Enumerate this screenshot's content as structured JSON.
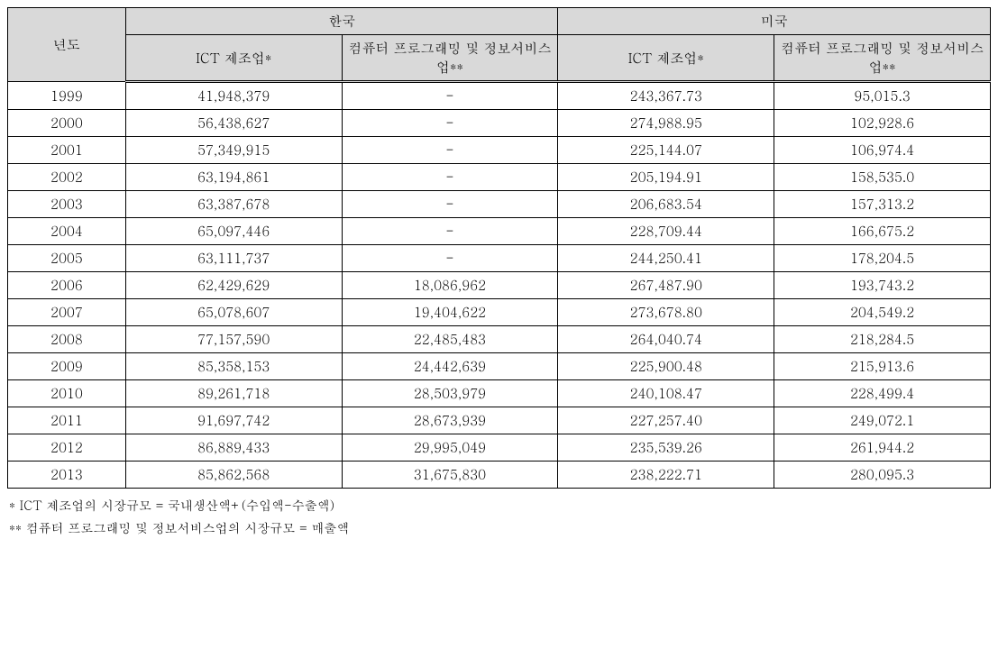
{
  "table": {
    "header": {
      "year": "년도",
      "korea": "한국",
      "usa": "미국",
      "ict_manufacturing": "ICT 제조업*",
      "computer_programming": "컴퓨터  프로그래밍 및 정보서비스업**"
    },
    "rows": [
      {
        "year": "1999",
        "k_ict": "41,948,379",
        "k_cp": "-",
        "u_ict": "243,367.73",
        "u_cp": "95,015.3"
      },
      {
        "year": "2000",
        "k_ict": "56,438,627",
        "k_cp": "-",
        "u_ict": "274,988.95",
        "u_cp": "102,928.6"
      },
      {
        "year": "2001",
        "k_ict": "57,349,915",
        "k_cp": "-",
        "u_ict": "225,144.07",
        "u_cp": "106,974.4"
      },
      {
        "year": "2002",
        "k_ict": "63,194,861",
        "k_cp": "-",
        "u_ict": "205,194.91",
        "u_cp": "158,535.0"
      },
      {
        "year": "2003",
        "k_ict": "63,387,678",
        "k_cp": "-",
        "u_ict": "206,683.54",
        "u_cp": "157,313.2"
      },
      {
        "year": "2004",
        "k_ict": "65,097,446",
        "k_cp": "-",
        "u_ict": "228,709.44",
        "u_cp": "166,675.2"
      },
      {
        "year": "2005",
        "k_ict": "63,111,737",
        "k_cp": "-",
        "u_ict": "244,250.41",
        "u_cp": "178,204.5"
      },
      {
        "year": "2006",
        "k_ict": "62,429,629",
        "k_cp": "18,086,962",
        "u_ict": "267,487.90",
        "u_cp": "193,743.2"
      },
      {
        "year": "2007",
        "k_ict": "65,078,607",
        "k_cp": "19,404,622",
        "u_ict": "273,678.80",
        "u_cp": "204,549.2"
      },
      {
        "year": "2008",
        "k_ict": "77,157,590",
        "k_cp": "22,485,483",
        "u_ict": "264,040.74",
        "u_cp": "218,284.5"
      },
      {
        "year": "2009",
        "k_ict": "85,358,153",
        "k_cp": "24,442,639",
        "u_ict": "225,900.48",
        "u_cp": "215,913.6"
      },
      {
        "year": "2010",
        "k_ict": "89,261,718",
        "k_cp": "28,503,979",
        "u_ict": "240,108.47",
        "u_cp": "228,499.4"
      },
      {
        "year": "2011",
        "k_ict": "91,697,742",
        "k_cp": "28,673,939",
        "u_ict": "227,257.40",
        "u_cp": "249,072.1"
      },
      {
        "year": "2012",
        "k_ict": "86,889,433",
        "k_cp": "29,995,049",
        "u_ict": "235,539.26",
        "u_cp": "261,944.2"
      },
      {
        "year": "2013",
        "k_ict": "85,862,568",
        "k_cp": "31,675,830",
        "u_ict": "238,222.71",
        "u_cp": "280,095.3"
      }
    ]
  },
  "footnotes": {
    "note1": "* ICT 제조업의  시장규모 = 국내생산액+(수입액-수출액)",
    "note2": "** 컴퓨터  프로그래밍 및 정보서비스업의  시장규모 = 매출액"
  },
  "style": {
    "type": "table",
    "header_bg": "#d9d9d9",
    "border_color": "#000000",
    "text_color": "#000000",
    "font_size_body": 15,
    "font_size_footnote": 14,
    "col_widths_pct": [
      12,
      22,
      22,
      22,
      22
    ]
  }
}
